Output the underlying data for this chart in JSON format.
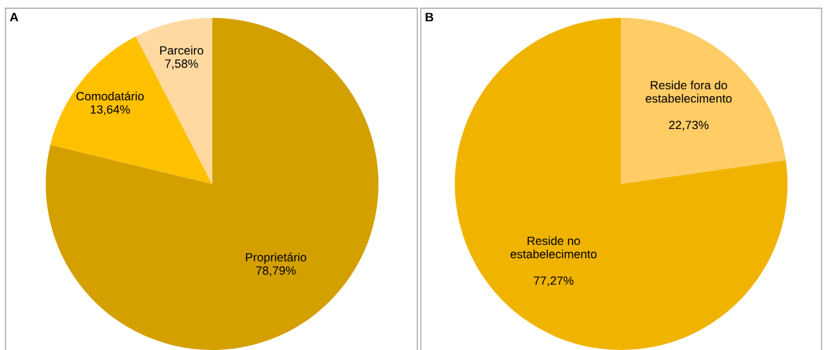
{
  "chart_data": [
    {
      "type": "pie",
      "title": "A",
      "categories": [
        "Proprietário",
        "Comodatário",
        "Parceiro"
      ],
      "values": [
        78.79,
        13.64,
        7.58
      ],
      "colors": [
        "#d4a000",
        "#ffc000",
        "#ffd9a0"
      ],
      "value_labels": [
        "78,79%",
        "13,64%",
        "7,58%"
      ]
    },
    {
      "type": "pie",
      "title": "B",
      "categories": [
        "Reside fora do\nestabelecimento",
        "Reside no\nestabelecimento"
      ],
      "values": [
        22.73,
        77.27
      ],
      "colors": [
        "#ffcc66",
        "#f0b400"
      ],
      "value_labels": [
        "\n22,73%",
        "\n77,27%"
      ]
    }
  ]
}
